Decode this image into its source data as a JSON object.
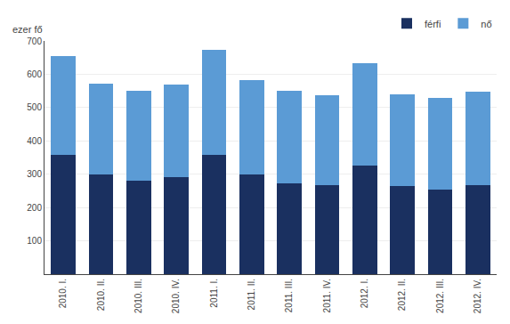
{
  "chart_data": {
    "type": "bar",
    "stacked": true,
    "categories": [
      "2010. I.",
      "2010. II.",
      "2010. III.",
      "2010. IV.",
      "2011. I.",
      "2011. II.",
      "2011. III.",
      "2011. IV.",
      "2012. I.",
      "2012. II.",
      "2012. III.",
      "2012. IV."
    ],
    "series": [
      {
        "name": "férfi",
        "color": "#1a3060",
        "values": [
          358,
          300,
          280,
          292,
          358,
          298,
          272,
          268,
          325,
          265,
          255,
          268
        ]
      },
      {
        "name": "nő",
        "color": "#5b9bd5",
        "values": [
          297,
          272,
          270,
          276,
          314,
          284,
          278,
          270,
          307,
          275,
          275,
          280
        ]
      }
    ],
    "ylabel": "ezer fő",
    "ylim": [
      0,
      700
    ],
    "yticks": [
      100,
      200,
      300,
      400,
      500,
      600,
      700
    ],
    "grid": true,
    "legend": "upper right"
  }
}
